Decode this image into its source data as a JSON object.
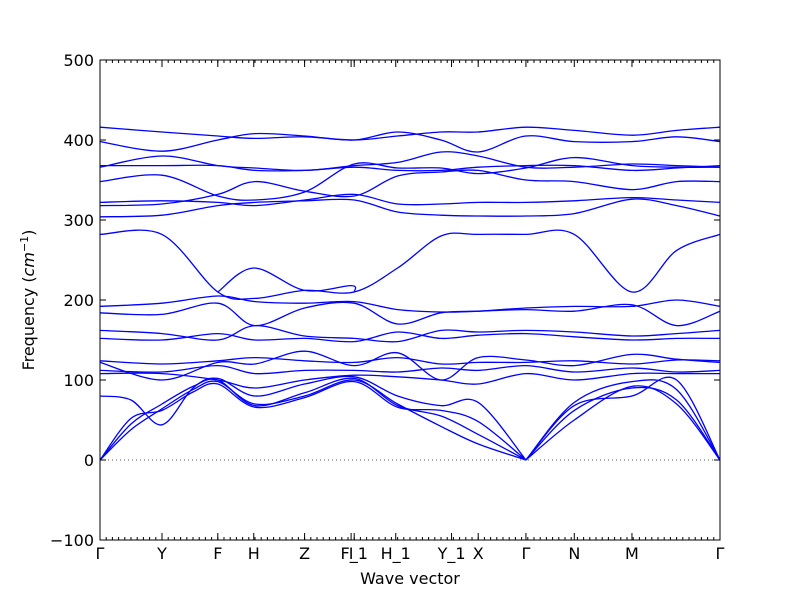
{
  "chart_data": {
    "type": "line",
    "title": "",
    "xlabel": "Wave vector",
    "ylabel": "Frequency (cm⁻¹)",
    "ylabel_base": "Frequency (",
    "ylabel_unit": "cm",
    "ylabel_exp": "−1",
    "ylabel_close": ")",
    "ylim": [
      -100,
      500
    ],
    "yticks": [
      -100,
      0,
      100,
      200,
      300,
      400,
      500
    ],
    "zero_line": true,
    "line_color": "#0000ff",
    "high_symmetry_points": [
      {
        "label": "Γ",
        "x": 0.0
      },
      {
        "label": "Y",
        "x": 0.1
      },
      {
        "label": "F",
        "x": 0.19
      },
      {
        "label": "H",
        "x": 0.248
      },
      {
        "label": "Z",
        "x": 0.33
      },
      {
        "label": "I",
        "x": 0.405
      },
      {
        "label": "F_1",
        "x": 0.41
      },
      {
        "label": "H_1",
        "x": 0.477
      },
      {
        "label": "Y_1",
        "x": 0.567
      },
      {
        "label": "X",
        "x": 0.61
      },
      {
        "label": "Γ",
        "x": 0.687
      },
      {
        "label": "N",
        "x": 0.765
      },
      {
        "label": "M",
        "x": 0.858
      },
      {
        "label": "Γ",
        "x": 1.0
      }
    ],
    "xlim": [
      0,
      1
    ],
    "series": [
      {
        "x": [
          0,
          0.05,
          0.1,
          0.15,
          0.19,
          0.25,
          0.33,
          0.41,
          0.48,
          0.55,
          0.61,
          0.687
        ],
        "values": [
          0,
          38,
          64,
          88,
          98,
          70,
          80,
          100,
          70,
          42,
          20,
          0
        ]
      },
      {
        "x": [
          0,
          0.05,
          0.1,
          0.15,
          0.19,
          0.25,
          0.33,
          0.41,
          0.48,
          0.55,
          0.61,
          0.687
        ],
        "values": [
          0,
          45,
          70,
          92,
          100,
          68,
          84,
          102,
          68,
          55,
          32,
          0
        ]
      },
      {
        "x": [
          0,
          0.05,
          0.1,
          0.15,
          0.19,
          0.25,
          0.33,
          0.41,
          0.48,
          0.55,
          0.61,
          0.687
        ],
        "values": [
          0,
          52,
          62,
          85,
          95,
          66,
          78,
          98,
          66,
          62,
          48,
          0
        ]
      },
      {
        "x": [
          0,
          0.05,
          0.1,
          0.15,
          0.19,
          0.25,
          0.33,
          0.41,
          0.48,
          0.55,
          0.61,
          0.687
        ],
        "values": [
          80,
          75,
          44,
          90,
          102,
          80,
          95,
          104,
          80,
          68,
          72,
          0
        ]
      },
      {
        "x": [
          0.687,
          0.765,
          0.858,
          0.93,
          1.0
        ],
        "values": [
          0,
          50,
          92,
          70,
          0
        ]
      },
      {
        "x": [
          0.687,
          0.765,
          0.858,
          0.93,
          1.0
        ],
        "values": [
          0,
          62,
          90,
          75,
          0
        ]
      },
      {
        "x": [
          0.687,
          0.765,
          0.858,
          0.93,
          1.0
        ],
        "values": [
          0,
          72,
          98,
          88,
          0
        ]
      },
      {
        "x": [
          0.687,
          0.765,
          0.858,
          0.93,
          1.0
        ],
        "values": [
          0,
          68,
          80,
          100,
          0
        ]
      },
      {
        "x": [
          0,
          0.1,
          0.19,
          0.25,
          0.33,
          0.41,
          0.48,
          0.55,
          0.61,
          0.687,
          0.765,
          0.858,
          0.93,
          1.0
        ],
        "values": [
          108,
          108,
          100,
          90,
          100,
          106,
          104,
          100,
          95,
          108,
          100,
          108,
          108,
          108
        ]
      },
      {
        "x": [
          0,
          0.1,
          0.19,
          0.25,
          0.33,
          0.41,
          0.48,
          0.55,
          0.61,
          0.687,
          0.765,
          0.858,
          0.93,
          1.0
        ],
        "values": [
          112,
          110,
          118,
          108,
          112,
          112,
          110,
          115,
          112,
          118,
          110,
          115,
          110,
          112
        ]
      },
      {
        "x": [
          0,
          0.1,
          0.19,
          0.25,
          0.33,
          0.41,
          0.48,
          0.55,
          0.61,
          0.687,
          0.765,
          0.858,
          0.93,
          1.0
        ],
        "values": [
          122,
          100,
          122,
          120,
          136,
          118,
          134,
          100,
          128,
          125,
          118,
          132,
          126,
          122
        ]
      },
      {
        "x": [
          0,
          0.1,
          0.19,
          0.25,
          0.33,
          0.41,
          0.48,
          0.55,
          0.61,
          0.687,
          0.765,
          0.858,
          0.93,
          1.0
        ],
        "values": [
          124,
          120,
          124,
          128,
          124,
          122,
          128,
          120,
          122,
          122,
          124,
          120,
          125,
          124
        ]
      },
      {
        "x": [
          0,
          0.1,
          0.19,
          0.25,
          0.33,
          0.41,
          0.48,
          0.55,
          0.61,
          0.687,
          0.765,
          0.858,
          0.93,
          1.0
        ],
        "values": [
          152,
          150,
          158,
          150,
          152,
          148,
          160,
          152,
          156,
          158,
          154,
          150,
          152,
          152
        ]
      },
      {
        "x": [
          0,
          0.1,
          0.19,
          0.25,
          0.33,
          0.41,
          0.48,
          0.55,
          0.61,
          0.687,
          0.765,
          0.858,
          0.93,
          1.0
        ],
        "values": [
          162,
          158,
          150,
          168,
          155,
          152,
          148,
          162,
          160,
          162,
          160,
          155,
          158,
          162
        ]
      },
      {
        "x": [
          0,
          0.1,
          0.19,
          0.25,
          0.33,
          0.41,
          0.48,
          0.55,
          0.61,
          0.687,
          0.765,
          0.858,
          0.93,
          1.0
        ],
        "values": [
          184,
          182,
          196,
          168,
          190,
          196,
          170,
          184,
          186,
          188,
          186,
          194,
          168,
          186
        ]
      },
      {
        "x": [
          0,
          0.1,
          0.19,
          0.25,
          0.33,
          0.41,
          0.48,
          0.55,
          0.61,
          0.687,
          0.765,
          0.858,
          0.93,
          1.0
        ],
        "values": [
          192,
          196,
          205,
          198,
          196,
          198,
          188,
          185,
          186,
          190,
          192,
          192,
          200,
          192
        ]
      },
      {
        "x": [
          0,
          0.1,
          0.19,
          0.25,
          0.33,
          0.41,
          0.48,
          0.55,
          0.61,
          0.687,
          0.765,
          0.858,
          0.93,
          1.0
        ],
        "values": [
          282,
          282,
          210,
          202,
          212,
          210,
          240,
          280,
          282,
          282,
          282,
          210,
          262,
          282
        ]
      },
      {
        "x": [
          0.19,
          0.248,
          0.33,
          0.405,
          0.41
        ],
        "values": [
          210,
          240,
          212,
          218,
          210
        ]
      },
      {
        "x": [
          0,
          0.1,
          0.19,
          0.25,
          0.33,
          0.41,
          0.48,
          0.55,
          0.61,
          0.687,
          0.765,
          0.858,
          0.93,
          1.0
        ],
        "values": [
          304,
          306,
          318,
          322,
          324,
          325,
          310,
          306,
          305,
          305,
          308,
          326,
          318,
          305
        ]
      },
      {
        "x": [
          0,
          0.1,
          0.19,
          0.25,
          0.33,
          0.41,
          0.48,
          0.55,
          0.61,
          0.687,
          0.765,
          0.858,
          0.93,
          1.0
        ],
        "values": [
          322,
          324,
          322,
          318,
          325,
          332,
          320,
          320,
          322,
          322,
          324,
          328,
          325,
          322
        ]
      },
      {
        "x": [
          0,
          0.1,
          0.19,
          0.25,
          0.33,
          0.41,
          0.48,
          0.55,
          0.61,
          0.687,
          0.765,
          0.858,
          0.93,
          1.0
        ],
        "values": [
          318,
          320,
          332,
          348,
          336,
          330,
          355,
          360,
          362,
          350,
          348,
          338,
          348,
          348
        ]
      },
      {
        "x": [
          0,
          0.1,
          0.19,
          0.25,
          0.33,
          0.41,
          0.48,
          0.55,
          0.61,
          0.687,
          0.765,
          0.858,
          0.93,
          1.0
        ],
        "values": [
          348,
          356,
          330,
          325,
          335,
          370,
          365,
          365,
          358,
          365,
          378,
          368,
          366,
          366
        ]
      },
      {
        "x": [
          0,
          0.1,
          0.19,
          0.25,
          0.33,
          0.41,
          0.48,
          0.55,
          0.61,
          0.687,
          0.765,
          0.858,
          0.93,
          1.0
        ],
        "values": [
          366,
          380,
          368,
          365,
          362,
          368,
          372,
          385,
          380,
          366,
          366,
          370,
          368,
          366
        ]
      },
      {
        "x": [
          0,
          0.1,
          0.19,
          0.25,
          0.33,
          0.41,
          0.48,
          0.55,
          0.61,
          0.687,
          0.765,
          0.858,
          0.93,
          1.0
        ],
        "values": [
          368,
          368,
          368,
          362,
          362,
          366,
          362,
          362,
          366,
          368,
          368,
          362,
          365,
          368
        ]
      },
      {
        "x": [
          0,
          0.1,
          0.19,
          0.25,
          0.33,
          0.41,
          0.48,
          0.55,
          0.61,
          0.687,
          0.765,
          0.858,
          0.93,
          1.0
        ],
        "values": [
          398,
          386,
          400,
          408,
          405,
          400,
          410,
          400,
          385,
          405,
          398,
          398,
          404,
          398
        ]
      },
      {
        "x": [
          0,
          0.1,
          0.19,
          0.25,
          0.33,
          0.41,
          0.48,
          0.55,
          0.61,
          0.687,
          0.765,
          0.858,
          0.93,
          1.0
        ],
        "values": [
          416,
          410,
          405,
          402,
          404,
          400,
          405,
          410,
          410,
          416,
          412,
          406,
          412,
          416
        ]
      }
    ]
  }
}
